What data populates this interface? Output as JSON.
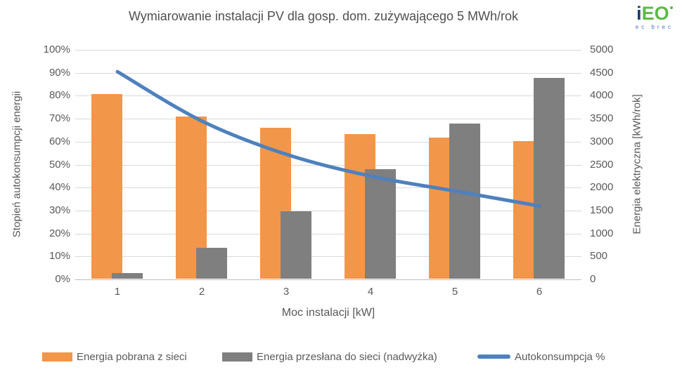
{
  "logo": {
    "part1": "i",
    "part2": "EO",
    "subtext": "ec brec"
  },
  "chart_data": {
    "type": "combo_bar_line",
    "title": "Wymiarowanie instalacji PV dla gosp. dom. zużywającego 5 MWh/rok",
    "categories": [
      "1",
      "2",
      "3",
      "4",
      "5",
      "6"
    ],
    "x_axis": {
      "label": "Moc instalacji [kW]"
    },
    "left_axis": {
      "label": "Stopień autokonsumpcji energii",
      "min": 0,
      "max": 100,
      "unit": "%",
      "ticks": [
        "100%",
        "90%",
        "80%",
        "70%",
        "60%",
        "50%",
        "40%",
        "30%",
        "20%",
        "10%",
        "0%"
      ]
    },
    "right_axis": {
      "label": "Energia elektryczna [kWh/rok]",
      "min": 0,
      "max": 5000,
      "ticks": [
        "5000",
        "4500",
        "4000",
        "3500",
        "3000",
        "2500",
        "2000",
        "1500",
        "1000",
        "500",
        "0"
      ]
    },
    "series": [
      {
        "name": "Energia pobrana z sieci",
        "type": "bar",
        "axis": "right",
        "color": "#F2964A",
        "values": [
          4040,
          3550,
          3300,
          3160,
          3080,
          3000
        ]
      },
      {
        "name": "Energia przesłana do sieci (nadwyżka)",
        "type": "bar",
        "axis": "right",
        "color": "#7F7F7F",
        "values": [
          120,
          670,
          1480,
          2400,
          3390,
          4390
        ]
      },
      {
        "name": "Autokonsumpcja %",
        "type": "line",
        "axis": "left",
        "color": "#4E81BD",
        "values": [
          90.5,
          69,
          54.5,
          45,
          38.5,
          32
        ]
      }
    ],
    "gridlines": true,
    "legend_position": "bottom",
    "colors": {
      "gridline": "#D9D9D9",
      "axis_line": "#BFBFBF",
      "text": "#595959",
      "title": "#4F4F4F"
    }
  }
}
